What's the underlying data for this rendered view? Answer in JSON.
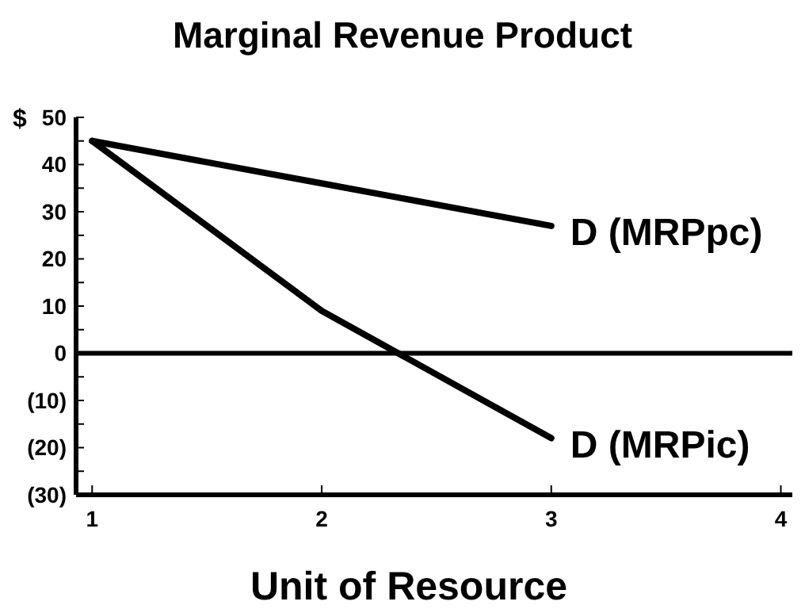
{
  "chart_data": {
    "type": "line",
    "title": "Marginal Revenue Product",
    "xlabel": "Unit of Resource",
    "ylabel": "$",
    "x": [
      1,
      2,
      3
    ],
    "series": [
      {
        "name": "D (MRPpc)",
        "color": "#000000",
        "values": [
          45,
          36,
          27
        ]
      },
      {
        "name": "D (MRPic)",
        "color": "#000000",
        "values": [
          45,
          9,
          -18
        ]
      }
    ],
    "xlim": [
      0.93,
      4.05
    ],
    "xticks": [
      1,
      2,
      3,
      4
    ],
    "ylim": [
      -30,
      50
    ],
    "yticks": [
      50,
      {
        "value": 45,
        "label": null
      },
      40,
      {
        "value": 35,
        "label": null
      },
      30,
      {
        "value": 25,
        "label": null
      },
      20,
      {
        "value": 15,
        "label": null
      },
      10,
      {
        "value": 5,
        "label": null
      },
      0,
      {
        "value": -5,
        "label": null
      },
      {
        "value": -10,
        "label": "(10)"
      },
      {
        "value": -15,
        "label": null
      },
      {
        "value": -20,
        "label": "(20)"
      },
      {
        "value": -25,
        "label": null
      },
      {
        "value": -30,
        "label": "(30)"
      }
    ],
    "ref_lines": [
      {
        "axis": "y",
        "value": 0,
        "color": "#000000"
      }
    ],
    "legend": false,
    "marker": "none",
    "line_style": "solid"
  }
}
